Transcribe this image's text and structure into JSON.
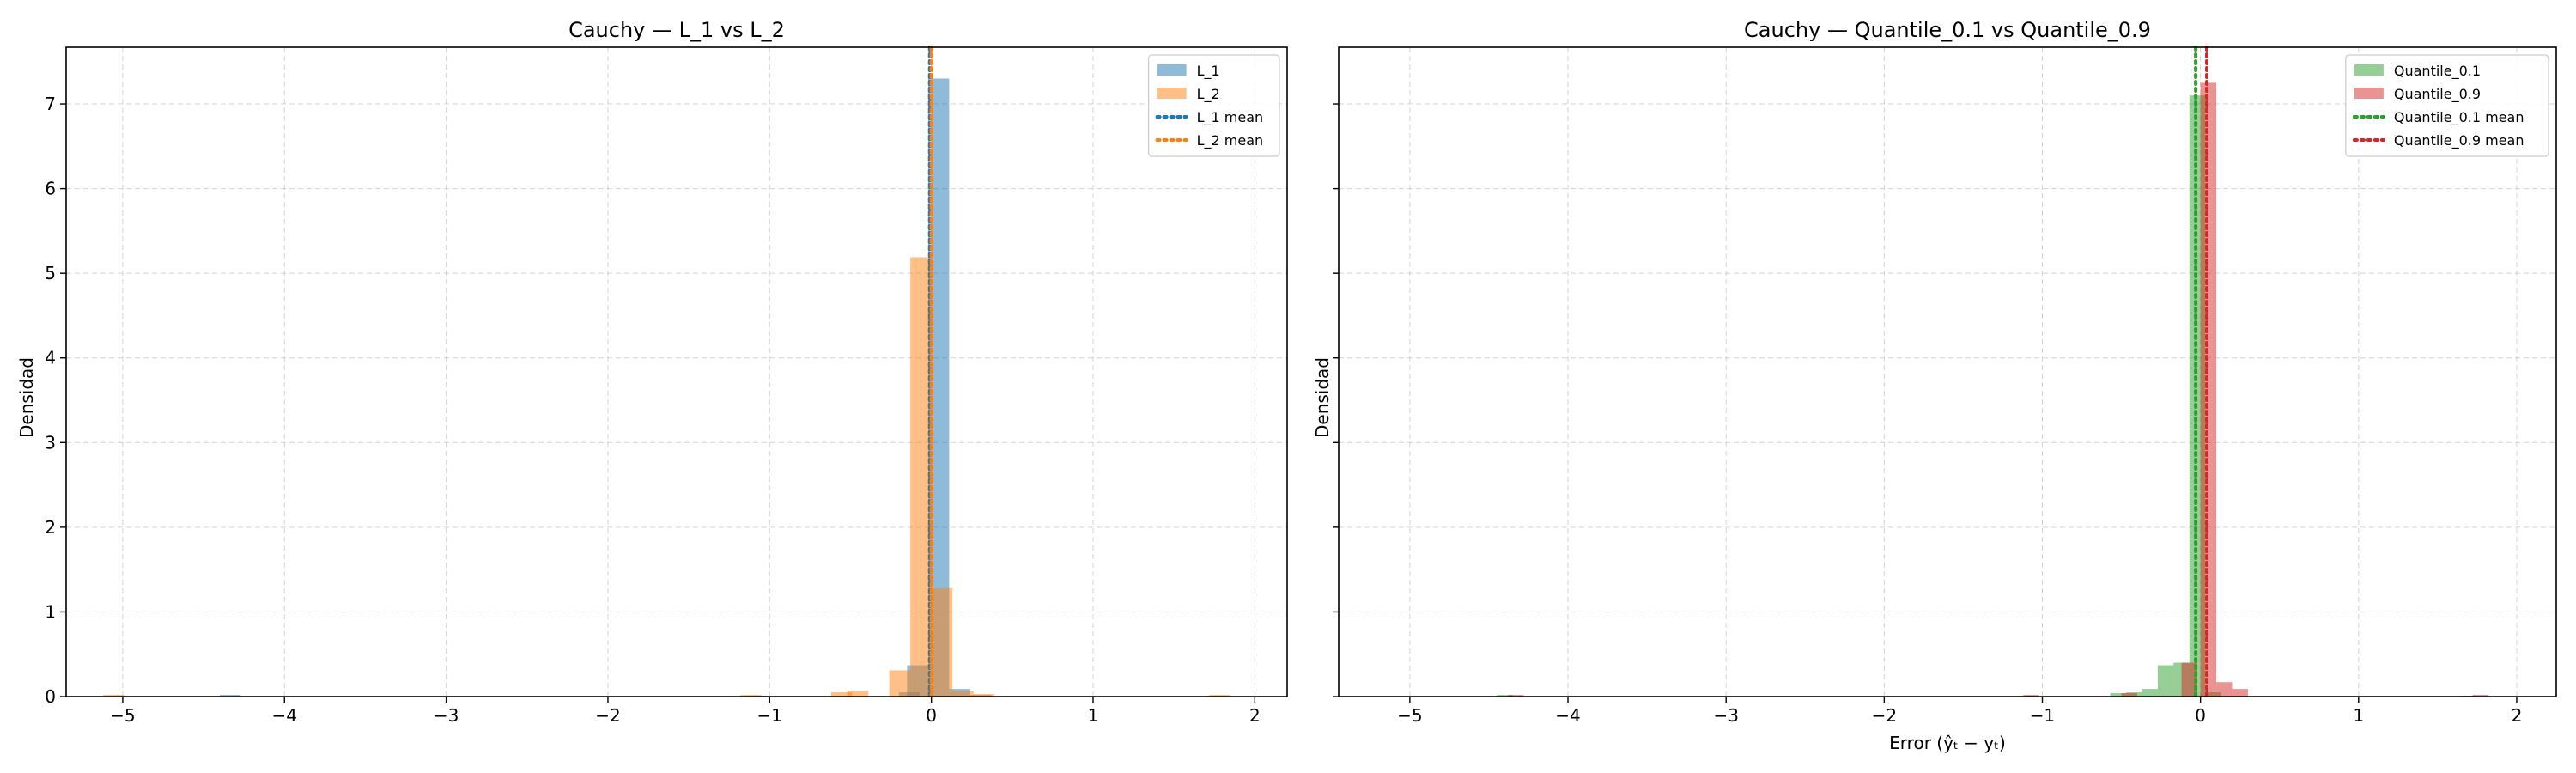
{
  "colors": {
    "L_1": "#1f77b4",
    "L_2": "#ff7f0e",
    "Quantile_0.1": "#2ca02c",
    "Quantile_0.9": "#d62728"
  },
  "chart_data": [
    {
      "type": "bar",
      "subtype": "histogram",
      "title": "Cauchy — L_1 vs L_2",
      "xlabel": "",
      "ylabel": "Densidad",
      "xlim": [
        -5.35,
        2.2
      ],
      "ylim": [
        0,
        7.67
      ],
      "xticks": [
        "−5",
        "−4",
        "−3",
        "−2",
        "−1",
        "0",
        "1",
        "2"
      ],
      "xtick_values": [
        -5,
        -4,
        -3,
        -2,
        -1,
        0,
        1,
        2
      ],
      "yticks": [
        "0",
        "1",
        "2",
        "3",
        "4",
        "5",
        "6",
        "7"
      ],
      "ytick_values": [
        0,
        1,
        2,
        3,
        4,
        5,
        6,
        7
      ],
      "grid": true,
      "legend_position": "top-right",
      "bin_width": 0.13,
      "series": [
        {
          "name": "L_1",
          "color_key": "L_1",
          "opacity": 0.5,
          "bins": [
            {
              "x0": -4.4,
              "h": 0.02
            },
            {
              "x0": -1.15,
              "h": 0.01
            },
            {
              "x0": -0.2,
              "h": 0.05
            },
            {
              "x0": -0.15,
              "h": 0.37
            },
            {
              "x0": -0.02,
              "h": 7.3
            },
            {
              "x0": 0.11,
              "h": 0.09
            },
            {
              "x0": 0.24,
              "h": 0.02
            },
            {
              "x0": 1.7,
              "h": 0.01
            }
          ]
        },
        {
          "name": "L_2",
          "color_key": "L_2",
          "opacity": 0.5,
          "bins": [
            {
              "x0": -5.12,
              "h": 0.02
            },
            {
              "x0": -1.18,
              "h": 0.02
            },
            {
              "x0": -0.62,
              "h": 0.05
            },
            {
              "x0": -0.52,
              "h": 0.07
            },
            {
              "x0": -0.26,
              "h": 0.31
            },
            {
              "x0": -0.13,
              "h": 5.19
            },
            {
              "x0": 0.0,
              "h": 1.28
            },
            {
              "x0": 0.13,
              "h": 0.07
            },
            {
              "x0": 0.26,
              "h": 0.03
            },
            {
              "x0": 1.72,
              "h": 0.02
            }
          ]
        }
      ],
      "mean_lines": [
        {
          "name": "L_1 mean",
          "x": -0.01,
          "color_key": "L_1"
        },
        {
          "name": "L_2 mean",
          "x": 0.0,
          "color_key": "L_2"
        }
      ]
    },
    {
      "type": "bar",
      "subtype": "histogram",
      "title": "Cauchy — Quantile_0.1 vs Quantile_0.9",
      "xlabel": "Error (ŷₜ − yₜ)",
      "ylabel": "Densidad",
      "xlim": [
        -5.45,
        2.25
      ],
      "ylim": [
        0,
        7.67
      ],
      "xticks": [
        "−5",
        "−4",
        "−3",
        "−2",
        "−1",
        "0",
        "1",
        "2"
      ],
      "xtick_values": [
        -5,
        -4,
        -3,
        -2,
        -1,
        0,
        1,
        2
      ],
      "yticks": [],
      "ytick_values": [
        0,
        1,
        2,
        3,
        4,
        5,
        6,
        7
      ],
      "grid": true,
      "legend_position": "top-right",
      "bin_width": 0.1,
      "series": [
        {
          "name": "Quantile_0.1",
          "color_key": "Quantile_0.1",
          "opacity": 0.5,
          "bins": [
            {
              "x0": -4.45,
              "h": 0.02
            },
            {
              "x0": -1.15,
              "h": 0.01
            },
            {
              "x0": -0.57,
              "h": 0.04
            },
            {
              "x0": -0.47,
              "h": 0.05
            },
            {
              "x0": -0.37,
              "h": 0.09
            },
            {
              "x0": -0.27,
              "h": 0.37
            },
            {
              "x0": -0.17,
              "h": 0.4
            },
            {
              "x0": -0.07,
              "h": 7.1
            },
            {
              "x0": 0.03,
              "h": 0.05
            },
            {
              "x0": 1.65,
              "h": 0.01
            }
          ]
        },
        {
          "name": "Quantile_0.9",
          "color_key": "Quantile_0.9",
          "opacity": 0.5,
          "bins": [
            {
              "x0": -4.38,
              "h": 0.02
            },
            {
              "x0": -1.12,
              "h": 0.02
            },
            {
              "x0": -0.5,
              "h": 0.04
            },
            {
              "x0": -0.12,
              "h": 0.4
            },
            {
              "x0": 0.0,
              "h": 7.25
            },
            {
              "x0": 0.1,
              "h": 0.17
            },
            {
              "x0": 0.2,
              "h": 0.09
            },
            {
              "x0": 1.72,
              "h": 0.02
            }
          ]
        }
      ],
      "mean_lines": [
        {
          "name": "Quantile_0.1 mean",
          "x": -0.03,
          "color_key": "Quantile_0.1"
        },
        {
          "name": "Quantile_0.9 mean",
          "x": 0.04,
          "color_key": "Quantile_0.9"
        }
      ]
    }
  ]
}
